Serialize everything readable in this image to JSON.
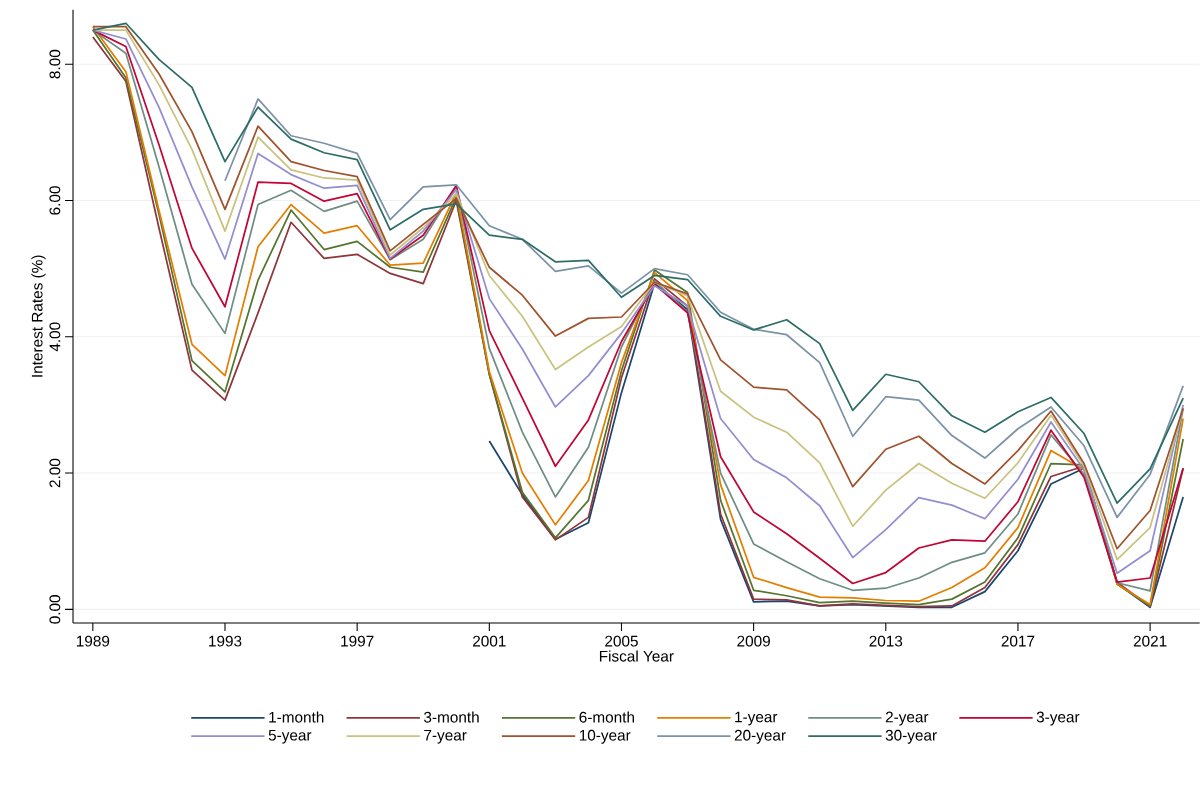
{
  "chart_data": {
    "type": "line",
    "xlabel": "Fiscal Year",
    "ylabel": "Interest Rates (%)",
    "x": [
      1989,
      1990,
      1991,
      1992,
      1993,
      1994,
      1995,
      1996,
      1997,
      1998,
      1999,
      2000,
      2001,
      2002,
      2003,
      2004,
      2005,
      2006,
      2007,
      2008,
      2009,
      2010,
      2011,
      2012,
      2013,
      2014,
      2015,
      2016,
      2017,
      2018,
      2019,
      2020,
      2021,
      2022
    ],
    "xlim": [
      1988.4,
      2022.5
    ],
    "xticks": [
      1989,
      1993,
      1997,
      2001,
      2005,
      2009,
      2013,
      2017,
      2021
    ],
    "ylim": [
      -0.2,
      8.8
    ],
    "yticks": [
      {
        "value": 0,
        "label": "0.00"
      },
      {
        "value": 2,
        "label": "2.00"
      },
      {
        "value": 4,
        "label": "4.00"
      },
      {
        "value": 6,
        "label": "6.00"
      },
      {
        "value": 8,
        "label": "8.00"
      }
    ],
    "grid": "y",
    "legend": "bottom",
    "series": [
      {
        "name": "1-month",
        "color": "#1a476f",
        "values": [
          null,
          null,
          null,
          null,
          null,
          null,
          null,
          null,
          null,
          null,
          null,
          null,
          2.47,
          1.68,
          1.03,
          1.27,
          3.18,
          4.78,
          4.4,
          1.32,
          0.11,
          0.12,
          0.05,
          0.07,
          0.05,
          0.03,
          0.03,
          0.26,
          0.86,
          1.84,
          2.07,
          0.38,
          0.03,
          1.65
        ]
      },
      {
        "name": "3-month",
        "color": "#90353b",
        "values": [
          8.4,
          7.75,
          5.6,
          3.51,
          3.07,
          4.35,
          5.68,
          5.15,
          5.21,
          4.93,
          4.78,
          6.0,
          3.45,
          1.65,
          1.02,
          1.35,
          3.4,
          4.85,
          4.45,
          1.4,
          0.15,
          0.14,
          0.05,
          0.08,
          0.06,
          0.04,
          0.05,
          0.32,
          0.95,
          1.95,
          2.1,
          0.4,
          0.04,
          2.07
        ]
      },
      {
        "name": "6-month",
        "color": "#55752f",
        "values": [
          8.5,
          7.8,
          5.8,
          3.65,
          3.19,
          4.83,
          5.86,
          5.28,
          5.4,
          5.02,
          4.95,
          6.05,
          3.45,
          1.72,
          1.05,
          1.6,
          3.5,
          4.98,
          4.65,
          1.6,
          0.28,
          0.2,
          0.1,
          0.12,
          0.09,
          0.07,
          0.15,
          0.4,
          1.05,
          2.14,
          2.12,
          0.37,
          0.05,
          2.5
        ]
      },
      {
        "name": "1-year",
        "color": "#e37e00",
        "values": [
          8.55,
          7.89,
          5.86,
          3.89,
          3.43,
          5.32,
          5.94,
          5.52,
          5.63,
          5.05,
          5.08,
          6.11,
          3.49,
          2.0,
          1.24,
          1.89,
          3.62,
          4.94,
          4.53,
          1.83,
          0.47,
          0.32,
          0.18,
          0.17,
          0.13,
          0.12,
          0.32,
          0.61,
          1.2,
          2.33,
          2.05,
          0.37,
          0.07,
          2.8
        ]
      },
      {
        "name": "2-year",
        "color": "#6e8e84",
        "values": [
          8.5,
          8.16,
          6.5,
          4.77,
          4.05,
          5.94,
          6.15,
          5.84,
          5.99,
          5.13,
          5.43,
          6.2,
          3.83,
          2.6,
          1.65,
          2.38,
          3.85,
          4.82,
          4.36,
          2.0,
          0.96,
          0.7,
          0.45,
          0.28,
          0.31,
          0.46,
          0.69,
          0.83,
          1.4,
          2.56,
          1.98,
          0.39,
          0.27,
          2.95
        ]
      },
      {
        "name": "3-year",
        "color": "#c10534",
        "values": [
          8.5,
          8.26,
          6.82,
          5.3,
          4.44,
          6.27,
          6.25,
          5.99,
          6.1,
          5.14,
          5.49,
          6.22,
          4.09,
          3.1,
          2.1,
          2.78,
          3.93,
          4.77,
          4.35,
          2.24,
          1.43,
          1.11,
          0.75,
          0.38,
          0.54,
          0.9,
          1.02,
          1.0,
          1.58,
          2.63,
          1.94,
          0.4,
          0.46,
          2.07
        ]
      },
      {
        "name": "5-year",
        "color": "#938dd2",
        "values": [
          8.5,
          8.37,
          7.37,
          6.2,
          5.14,
          6.69,
          6.38,
          6.18,
          6.22,
          5.15,
          5.55,
          6.16,
          4.56,
          3.82,
          2.97,
          3.43,
          4.05,
          4.75,
          4.45,
          2.8,
          2.2,
          1.93,
          1.52,
          0.76,
          1.17,
          1.64,
          1.53,
          1.33,
          1.91,
          2.75,
          2.05,
          0.53,
          0.86,
          3.0
        ]
      },
      {
        "name": "7-year",
        "color": "#cac27e",
        "values": [
          8.5,
          8.5,
          7.7,
          6.75,
          5.55,
          6.93,
          6.45,
          6.33,
          6.3,
          5.2,
          5.6,
          6.1,
          4.9,
          4.3,
          3.52,
          3.85,
          4.15,
          4.8,
          4.6,
          3.2,
          2.82,
          2.6,
          2.15,
          1.22,
          1.75,
          2.14,
          1.85,
          1.63,
          2.15,
          2.85,
          2.1,
          0.73,
          1.2,
          2.95
        ]
      },
      {
        "name": "10-year",
        "color": "#a0522d",
        "values": [
          8.55,
          8.55,
          7.86,
          7.01,
          5.87,
          7.09,
          6.57,
          6.44,
          6.35,
          5.26,
          5.65,
          6.03,
          5.02,
          4.61,
          4.01,
          4.27,
          4.29,
          4.8,
          4.63,
          3.66,
          3.26,
          3.22,
          2.78,
          1.8,
          2.35,
          2.54,
          2.14,
          1.84,
          2.33,
          2.91,
          2.14,
          0.89,
          1.45,
          2.95
        ]
      },
      {
        "name": "20-year",
        "color": "#7b92a8",
        "values": [
          null,
          null,
          null,
          null,
          6.29,
          7.49,
          6.95,
          6.84,
          6.69,
          5.72,
          6.2,
          6.23,
          5.63,
          5.43,
          4.96,
          5.04,
          4.64,
          5.0,
          4.91,
          4.36,
          4.11,
          4.03,
          3.62,
          2.54,
          3.12,
          3.07,
          2.55,
          2.22,
          2.65,
          2.97,
          2.4,
          1.35,
          1.98,
          3.28
        ]
      },
      {
        "name": "30-year",
        "color": "#2d6d66",
        "values": [
          8.5,
          8.6,
          8.07,
          7.66,
          6.57,
          7.37,
          6.9,
          6.7,
          6.6,
          5.57,
          5.87,
          5.95,
          5.49,
          5.43,
          5.1,
          5.12,
          4.58,
          4.9,
          4.84,
          4.3,
          4.1,
          4.25,
          3.9,
          2.92,
          3.45,
          3.34,
          2.84,
          2.6,
          2.9,
          3.11,
          2.58,
          1.56,
          2.06,
          3.1
        ]
      }
    ]
  }
}
